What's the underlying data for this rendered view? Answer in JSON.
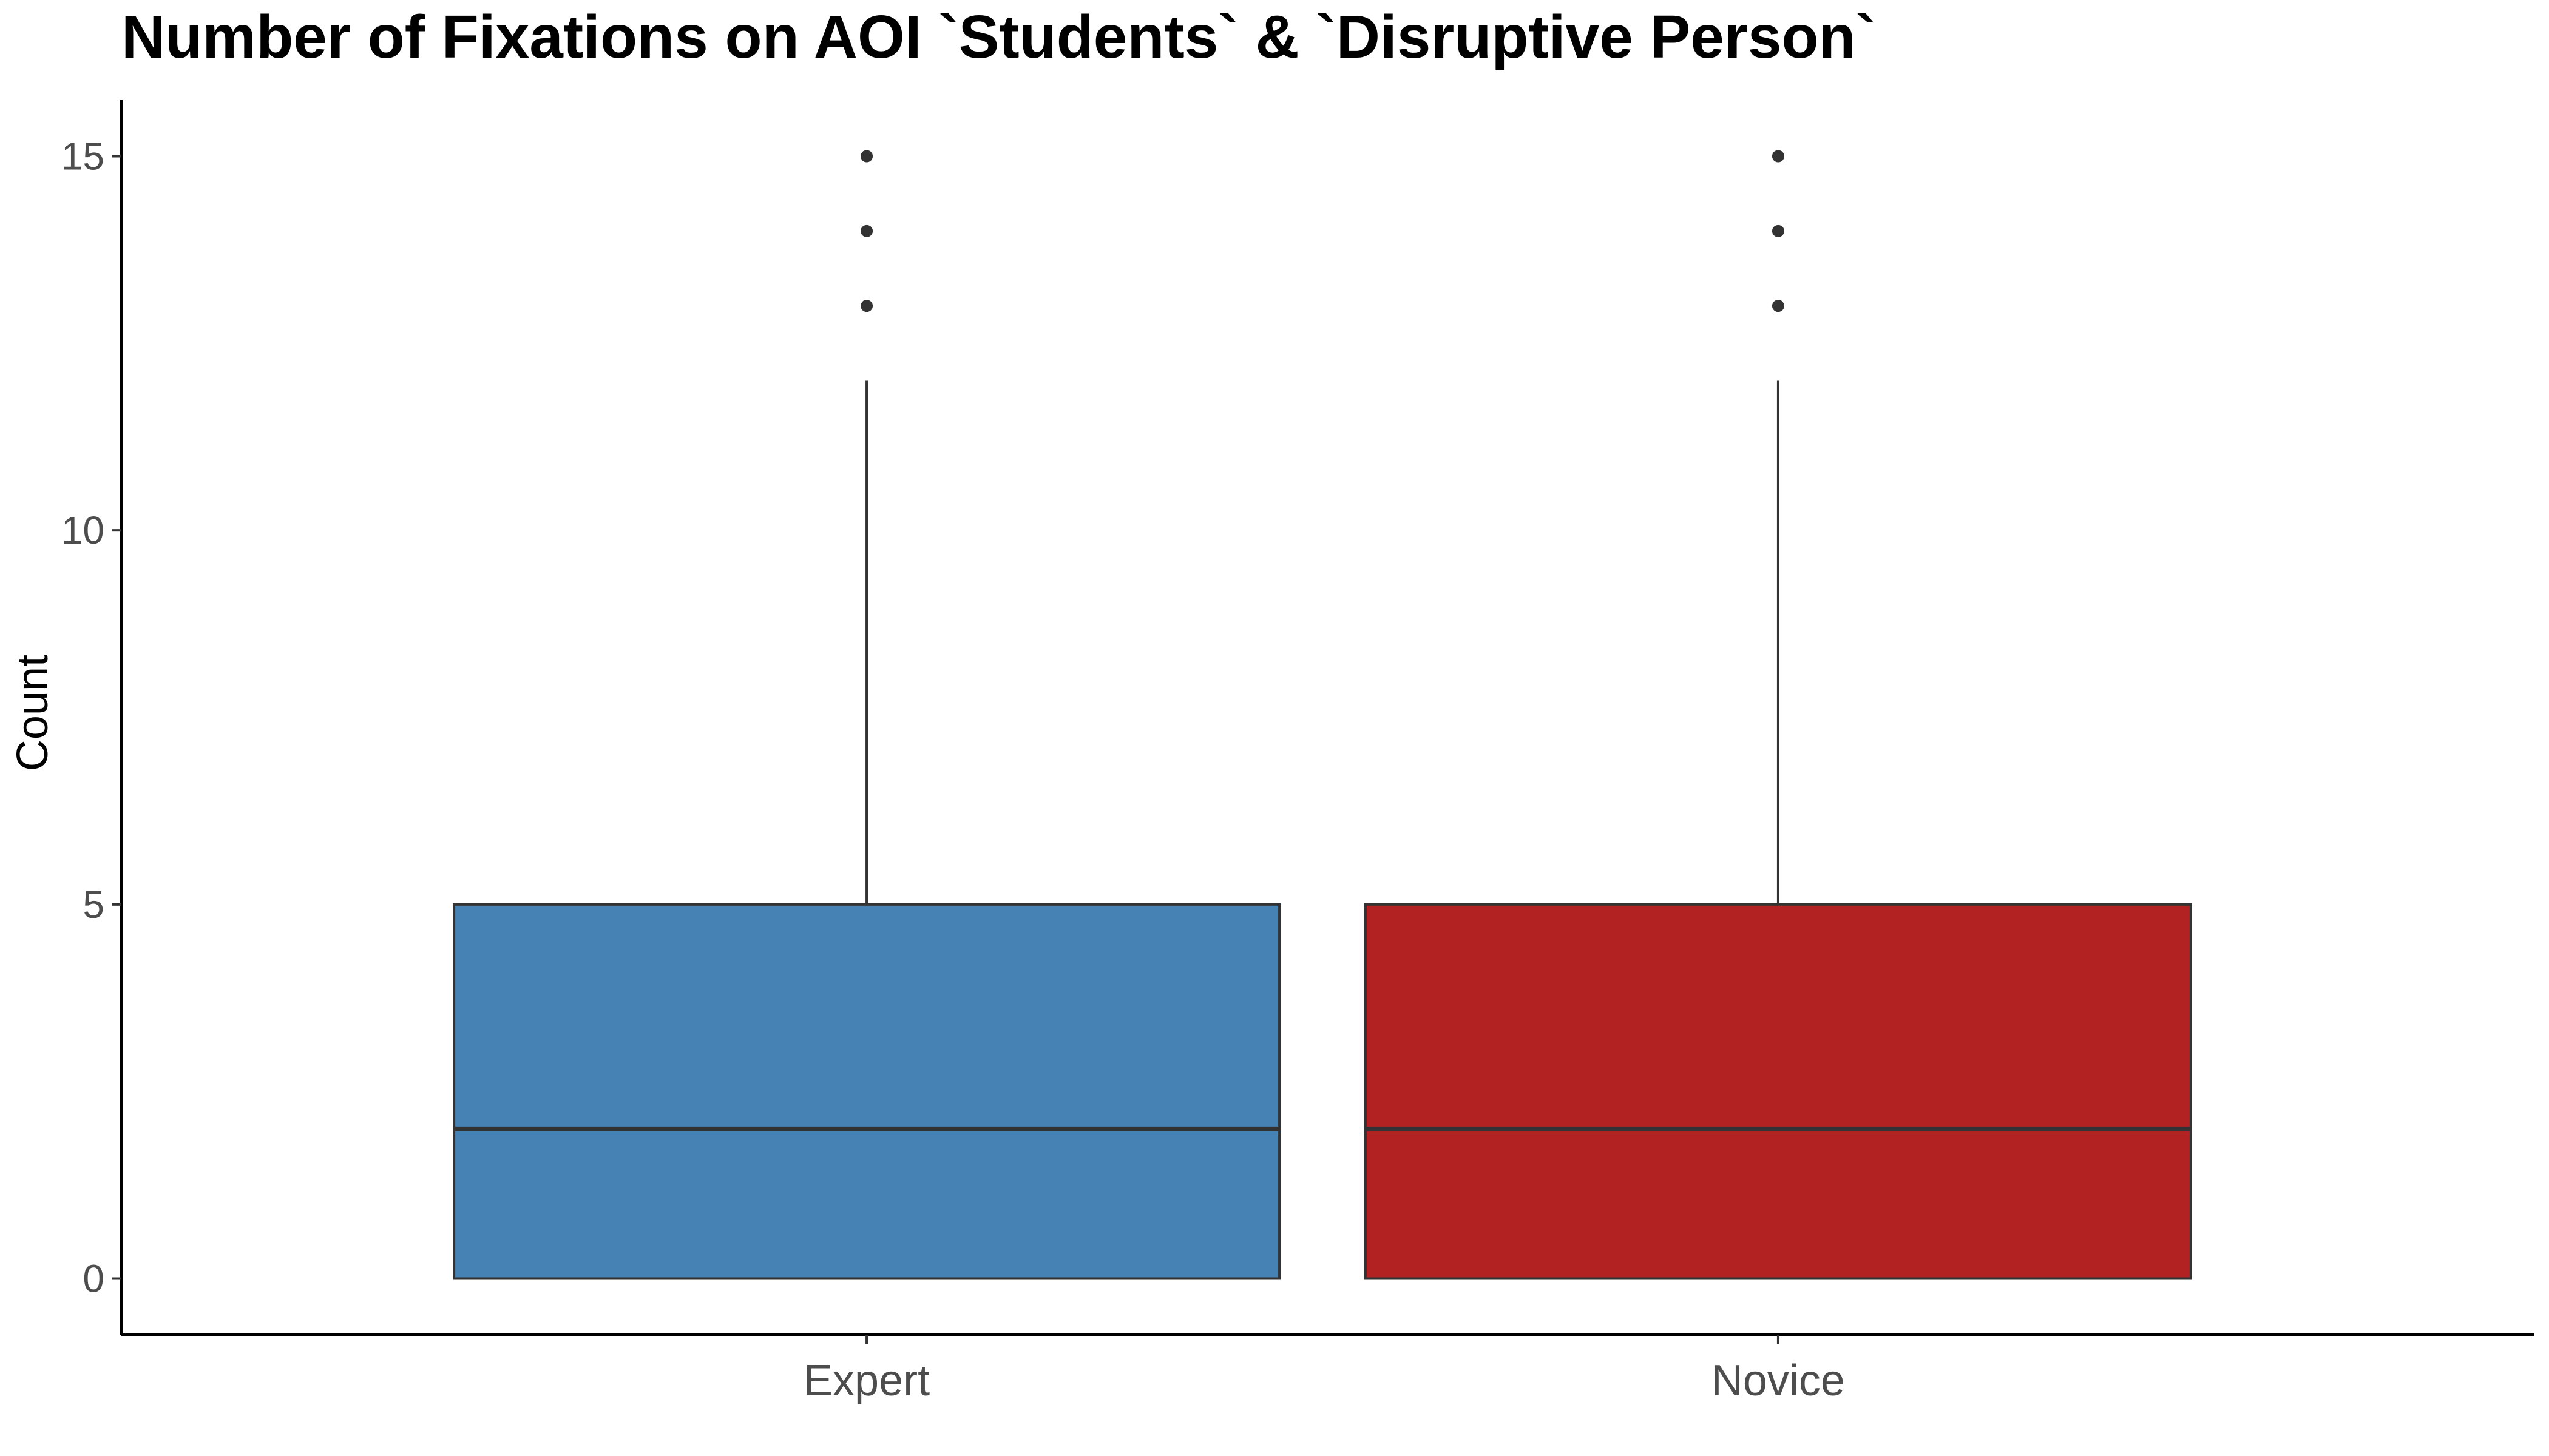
{
  "chart_data": {
    "type": "boxplot",
    "title": "Number of Fixations on AOI `Students` & `Disruptive Person`",
    "xlabel": "",
    "ylabel": "Count",
    "ylim": [
      -0.75,
      15.75
    ],
    "yticks": [
      "0",
      "5",
      "10",
      "15"
    ],
    "grid": false,
    "legend": "none",
    "categories": [
      "Expert",
      "Novice"
    ],
    "boxes": [
      {
        "category": "Expert",
        "color": "#4682B4",
        "whisker_low": 0,
        "q1": 0,
        "median": 2,
        "q3": 5,
        "whisker_high": 12,
        "outliers": [
          13,
          14,
          15
        ]
      },
      {
        "category": "Novice",
        "color": "#B22222",
        "whisker_low": 0,
        "q1": 0,
        "median": 2,
        "q3": 5,
        "whisker_high": 12,
        "outliers": [
          13,
          14,
          15
        ]
      }
    ]
  }
}
